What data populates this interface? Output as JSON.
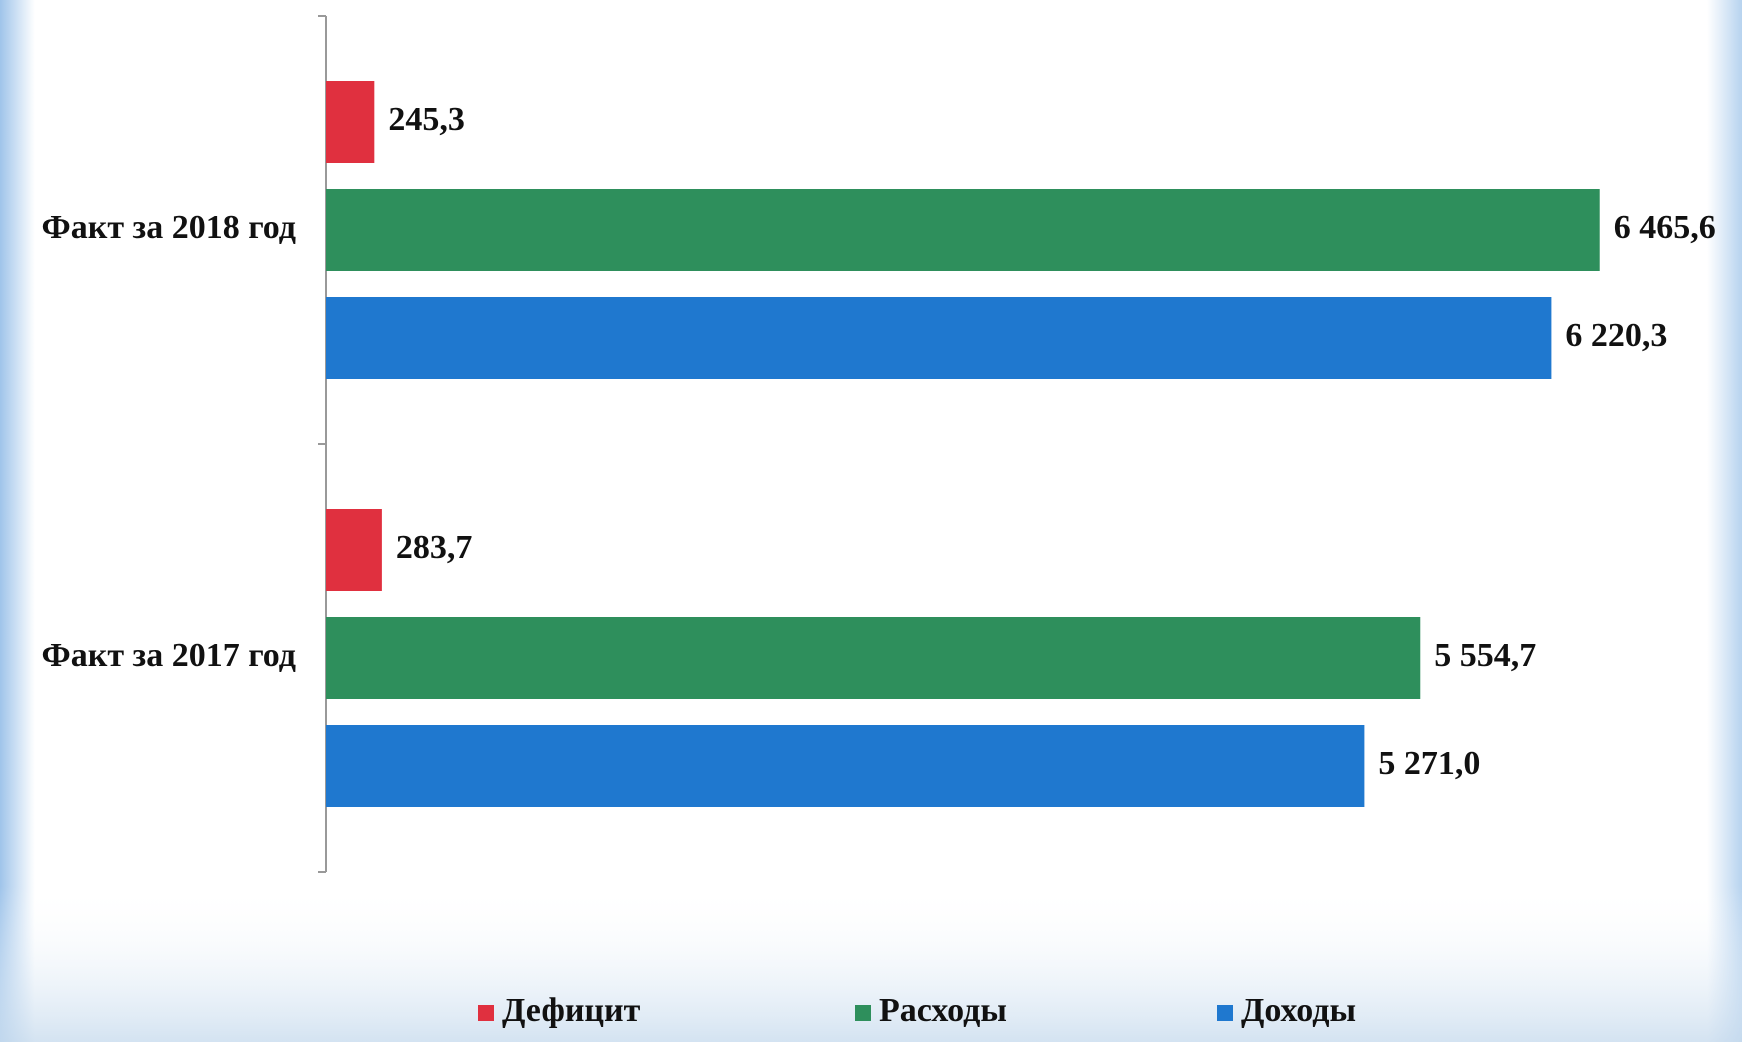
{
  "chart_data": {
    "type": "hbar",
    "categories": [
      "Факт за 2018 год",
      "Факт за 2017 год"
    ],
    "series": [
      {
        "name": "Дефицит",
        "color": "#e0303f",
        "values": [
          245.3,
          283.7
        ],
        "value_labels": [
          "245,3",
          "283,7"
        ]
      },
      {
        "name": "Расходы",
        "color": "#2e8f5c",
        "values": [
          6465.6,
          5554.7
        ],
        "value_labels": [
          "6 465,6",
          "5 554,7"
        ]
      },
      {
        "name": "Доходы",
        "color": "#1f78cf",
        "values": [
          6220.3,
          5271.0
        ],
        "value_labels": [
          "6 220,3",
          "5 271,0"
        ]
      }
    ],
    "xlim": [
      0,
      7000
    ],
    "legend": "bottom"
  }
}
